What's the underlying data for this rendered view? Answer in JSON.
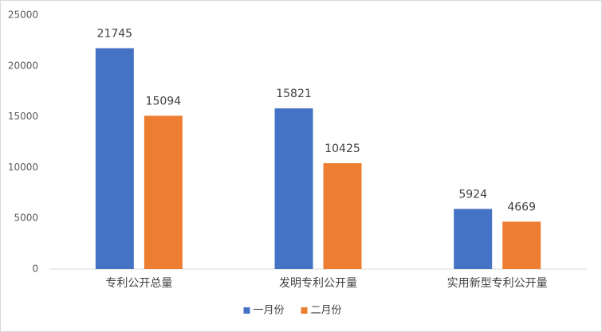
{
  "chart_data": {
    "type": "bar",
    "categories": [
      "专利公开总量",
      "发明专利公开量",
      "实用新型专利公开量"
    ],
    "series": [
      {
        "name": "一月份",
        "color": "#4472c4",
        "values": [
          21745,
          15821,
          5924
        ]
      },
      {
        "name": "二月份",
        "color": "#ed7d31",
        "values": [
          15094,
          10425,
          4669
        ]
      }
    ],
    "ylim": [
      0,
      25000
    ],
    "yticks": [
      0,
      5000,
      10000,
      15000,
      20000,
      25000
    ],
    "grid": false,
    "legend": "bottom"
  }
}
